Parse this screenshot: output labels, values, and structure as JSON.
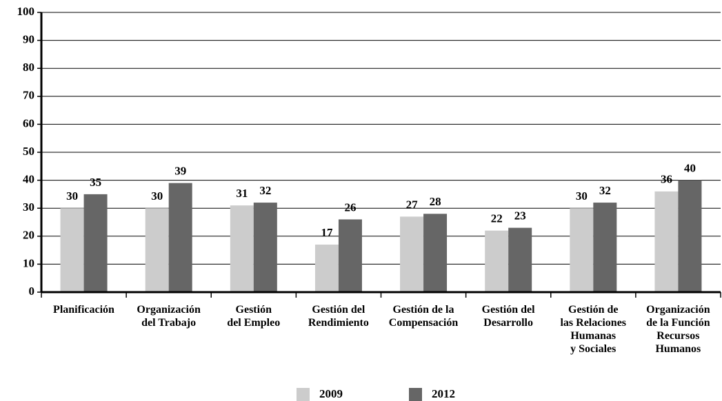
{
  "chart_data": {
    "type": "bar",
    "categories": [
      "Planificación",
      "Organización\ndel Trabajo",
      "Gestión\ndel Empleo",
      "Gestión del\nRendimiento",
      "Gestión de la\nCompensación",
      "Gestión del\nDesarrollo",
      "Gestión de\nlas Relaciones\nHumanas\ny Sociales",
      "Organización\nde la Función\nRecursos\nHumanos"
    ],
    "series": [
      {
        "name": "2009",
        "color": "#cccccc",
        "values": [
          30,
          30,
          31,
          17,
          27,
          22,
          30,
          36
        ]
      },
      {
        "name": "2012",
        "color": "#666666",
        "values": [
          35,
          39,
          32,
          26,
          28,
          23,
          32,
          40
        ]
      }
    ],
    "ylim": [
      0,
      100
    ],
    "yticks": [
      0,
      10,
      20,
      30,
      40,
      50,
      60,
      70,
      80,
      90,
      100
    ],
    "grid": true,
    "legend": "bottom"
  }
}
